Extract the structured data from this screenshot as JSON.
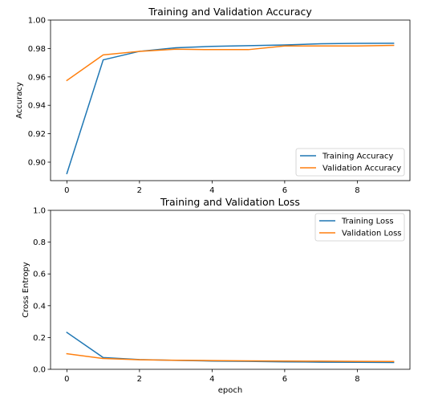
{
  "chart_data": [
    {
      "type": "line",
      "title": "Training and Validation Accuracy",
      "xlabel": "",
      "ylabel": "Accuracy",
      "xlim": [
        -0.45,
        9.45
      ],
      "ylim": [
        0.887,
        1.0
      ],
      "xticks": [
        "0",
        "2",
        "4",
        "6",
        "8"
      ],
      "xtick_values": [
        0,
        2,
        4,
        6,
        8
      ],
      "yticks": [
        "0.90",
        "0.92",
        "0.94",
        "0.96",
        "0.98",
        "1.00"
      ],
      "ytick_values": [
        0.9,
        0.92,
        0.94,
        0.96,
        0.98,
        1.0
      ],
      "x": [
        0,
        1,
        2,
        3,
        4,
        5,
        6,
        7,
        8,
        9
      ],
      "legend_position": "lower-right",
      "grid": false,
      "series": [
        {
          "name": "Training Accuracy",
          "color": "#1f77b4",
          "values": [
            0.892,
            0.972,
            0.978,
            0.9805,
            0.9815,
            0.982,
            0.9825,
            0.9833,
            0.9836,
            0.9837
          ]
        },
        {
          "name": "Validation Accuracy",
          "color": "#ff7f0e",
          "values": [
            0.9575,
            0.9755,
            0.978,
            0.9795,
            0.9792,
            0.9792,
            0.9818,
            0.9818,
            0.9818,
            0.9822
          ]
        }
      ]
    },
    {
      "type": "line",
      "title": "Training and Validation Loss",
      "xlabel": "epoch",
      "ylabel": "Cross Entropy",
      "xlim": [
        -0.45,
        9.45
      ],
      "ylim": [
        0.0,
        1.0
      ],
      "xticks": [
        "0",
        "2",
        "4",
        "6",
        "8"
      ],
      "xtick_values": [
        0,
        2,
        4,
        6,
        8
      ],
      "yticks": [
        "0.0",
        "0.2",
        "0.4",
        "0.6",
        "0.8",
        "1.0"
      ],
      "ytick_values": [
        0.0,
        0.2,
        0.4,
        0.6,
        0.8,
        1.0
      ],
      "x": [
        0,
        1,
        2,
        3,
        4,
        5,
        6,
        7,
        8,
        9
      ],
      "legend_position": "upper-right",
      "grid": false,
      "series": [
        {
          "name": "Training Loss",
          "color": "#1f77b4",
          "values": [
            0.232,
            0.074,
            0.061,
            0.056,
            0.052,
            0.05,
            0.047,
            0.045,
            0.044,
            0.043
          ]
        },
        {
          "name": "Validation Loss",
          "color": "#ff7f0e",
          "values": [
            0.098,
            0.068,
            0.06,
            0.057,
            0.055,
            0.053,
            0.052,
            0.051,
            0.05,
            0.049
          ]
        }
      ]
    }
  ]
}
